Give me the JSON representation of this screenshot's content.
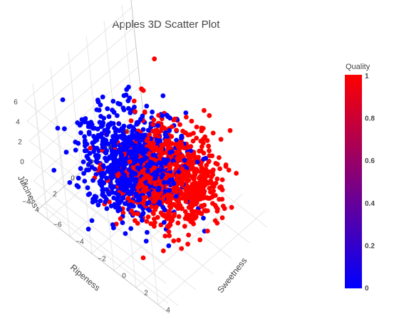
{
  "chart_data": {
    "type": "scatter",
    "projection": "3d",
    "title": "Apples 3D Scatter Plot",
    "axes": {
      "x": {
        "label": "Sweetness",
        "ticks": [
          "−6",
          "−4",
          "−2",
          "0",
          "2",
          "4"
        ],
        "range": [
          -7,
          5
        ]
      },
      "y": {
        "label": "Ripeness",
        "ticks": [
          "−6",
          "−4",
          "−2",
          "0",
          "2",
          "4"
        ],
        "range": [
          -7,
          5
        ]
      },
      "z": {
        "label": "Juiciness",
        "ticks": [
          "−4",
          "−2",
          "0",
          "2",
          "4",
          "6"
        ],
        "range": [
          -5,
          7
        ]
      }
    },
    "color_axis": {
      "title": "Quality",
      "min": 0,
      "max": 1,
      "ticks": [
        "0",
        "0.2",
        "0.4",
        "0.6",
        "0.8",
        "1"
      ],
      "colorscale": [
        "#0000ff",
        "#ff0000"
      ]
    },
    "series": [
      {
        "quality": 0,
        "color": "#0000ff",
        "cluster": {
          "sweetness_mean": -1.5,
          "ripeness_mean": 0.5,
          "juiciness_mean": 0.8,
          "spread": 1.8
        },
        "count": 900
      },
      {
        "quality": 1,
        "color": "#ff0000",
        "cluster": {
          "sweetness_mean": 0.8,
          "ripeness_mean": -1.0,
          "juiciness_mean": 0.4,
          "spread": 1.8
        },
        "count": 900
      }
    ],
    "grid": true,
    "legend": "colorbar-right"
  }
}
